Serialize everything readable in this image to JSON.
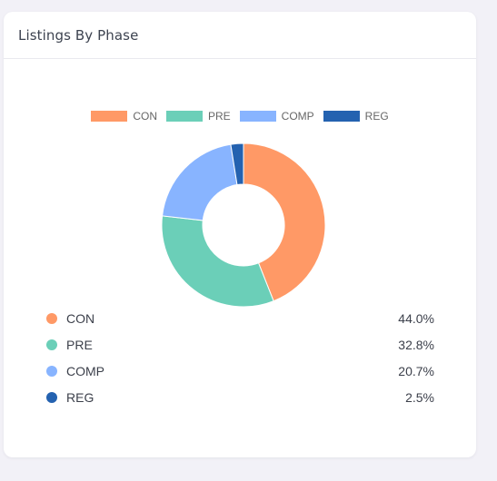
{
  "card": {
    "title": "Listings By Phase"
  },
  "chart_data": {
    "type": "pie",
    "donut": true,
    "title": "",
    "categories": [
      "CON",
      "PRE",
      "COMP",
      "REG"
    ],
    "values": [
      44.0,
      32.8,
      20.7,
      2.5
    ],
    "colors": [
      "#ff9966",
      "#6bcfb8",
      "#88b4ff",
      "#2462b0"
    ],
    "legend_position": "top",
    "value_labels": [
      "44.0%",
      "32.8%",
      "20.7%",
      "2.5%"
    ]
  }
}
